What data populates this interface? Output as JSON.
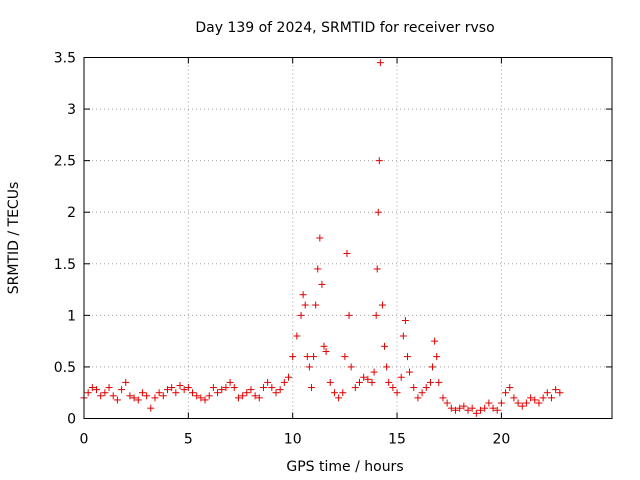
{
  "chart_data": {
    "type": "scatter",
    "title": "Day 139 of 2024, SRMTID for receiver rvso",
    "xlabel": "GPS time / hours",
    "ylabel": "SRMTID / TECUs",
    "xlim": [
      0,
      25.3
    ],
    "ylim": [
      0,
      3.5
    ],
    "xticks": [
      0,
      5,
      10,
      15,
      20
    ],
    "xtick_labels": [
      "0",
      "5",
      "10",
      "15",
      "20"
    ],
    "yticks": [
      0,
      0.5,
      1,
      1.5,
      2,
      2.5,
      3,
      3.5
    ],
    "ytick_labels": [
      "0",
      "0.5",
      "1",
      "1.5",
      "2",
      "2.5",
      "3",
      "3.5"
    ],
    "grid": true,
    "marker": "plus",
    "color": "#e00000",
    "series": [
      {
        "name": "rvso",
        "x": [
          0.0,
          0.2,
          0.4,
          0.6,
          0.8,
          1.0,
          1.2,
          1.4,
          1.6,
          1.8,
          2.0,
          2.2,
          2.4,
          2.6,
          2.8,
          3.0,
          3.2,
          3.4,
          3.6,
          3.8,
          4.0,
          4.2,
          4.4,
          4.6,
          4.8,
          5.0,
          5.2,
          5.4,
          5.6,
          5.8,
          6.0,
          6.2,
          6.4,
          6.6,
          6.8,
          7.0,
          7.2,
          7.4,
          7.6,
          7.8,
          8.0,
          8.2,
          8.4,
          8.6,
          8.8,
          9.0,
          9.2,
          9.4,
          9.6,
          9.8,
          10.0,
          10.2,
          10.4,
          10.5,
          10.6,
          10.7,
          10.8,
          10.9,
          11.0,
          11.1,
          11.2,
          11.3,
          11.4,
          11.5,
          11.6,
          11.8,
          12.0,
          12.2,
          12.4,
          12.5,
          12.6,
          12.7,
          12.8,
          13.0,
          13.2,
          13.4,
          13.6,
          13.8,
          13.9,
          14.0,
          14.05,
          14.1,
          14.15,
          14.2,
          14.3,
          14.4,
          14.5,
          14.6,
          14.8,
          15.0,
          15.2,
          15.3,
          15.4,
          15.5,
          15.6,
          15.8,
          16.0,
          16.2,
          16.4,
          16.6,
          16.7,
          16.8,
          16.9,
          17.0,
          17.2,
          17.4,
          17.6,
          17.8,
          18.0,
          18.2,
          18.4,
          18.6,
          18.8,
          19.0,
          19.2,
          19.4,
          19.6,
          19.8,
          20.0,
          20.2,
          20.4,
          20.6,
          20.8,
          21.0,
          21.2,
          21.4,
          21.6,
          21.8,
          22.0,
          22.2,
          22.4,
          22.6,
          22.8
        ],
        "y": [
          0.2,
          0.25,
          0.3,
          0.28,
          0.22,
          0.25,
          0.3,
          0.22,
          0.18,
          0.28,
          0.35,
          0.22,
          0.2,
          0.18,
          0.25,
          0.22,
          0.1,
          0.2,
          0.25,
          0.22,
          0.28,
          0.3,
          0.25,
          0.32,
          0.28,
          0.3,
          0.25,
          0.22,
          0.2,
          0.18,
          0.22,
          0.3,
          0.25,
          0.28,
          0.3,
          0.35,
          0.3,
          0.2,
          0.22,
          0.25,
          0.28,
          0.22,
          0.2,
          0.3,
          0.35,
          0.3,
          0.25,
          0.28,
          0.35,
          0.4,
          0.6,
          0.8,
          1.0,
          1.2,
          1.1,
          0.6,
          0.5,
          0.3,
          0.6,
          1.1,
          1.45,
          1.75,
          1.3,
          0.7,
          0.65,
          0.35,
          0.25,
          0.2,
          0.25,
          0.6,
          1.6,
          1.0,
          0.5,
          0.3,
          0.35,
          0.4,
          0.38,
          0.35,
          0.45,
          1.0,
          1.45,
          2.0,
          2.5,
          3.45,
          1.1,
          0.7,
          0.5,
          0.35,
          0.3,
          0.25,
          0.4,
          0.8,
          0.95,
          0.6,
          0.45,
          0.3,
          0.2,
          0.25,
          0.3,
          0.35,
          0.5,
          0.75,
          0.6,
          0.35,
          0.2,
          0.15,
          0.1,
          0.08,
          0.1,
          0.12,
          0.08,
          0.1,
          0.05,
          0.08,
          0.1,
          0.15,
          0.1,
          0.08,
          0.15,
          0.25,
          0.3,
          0.2,
          0.15,
          0.12,
          0.15,
          0.2,
          0.18,
          0.15,
          0.2,
          0.25,
          0.2,
          0.28,
          0.25
        ]
      }
    ]
  }
}
